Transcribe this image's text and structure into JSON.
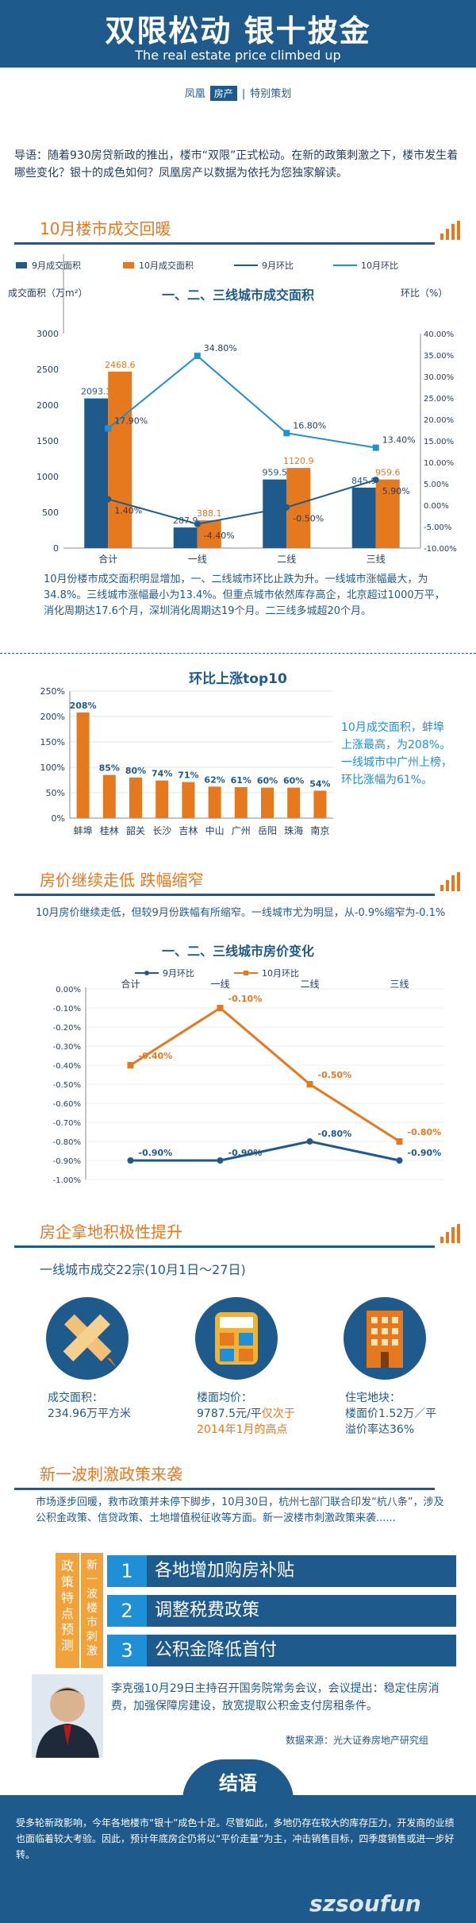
{
  "header": {
    "title": "双限松动 银十披金",
    "subtitle": "The real estate price climbed up",
    "brand": "凤凰",
    "brand_tag": "房产",
    "brand_special": "特别策划"
  },
  "intro": "导语：随着930房贷新政的推出，楼市“双限”正式松动。在新的政策刺激之下，楼市发生着哪些变化？银十的成色如何？凤凰房产以数据为依托为您独家解读。",
  "section1": {
    "title": "10月楼市成交回暖",
    "legend": [
      "9月成交面积",
      "10月成交面积",
      "9月环比",
      "10月环比"
    ],
    "chart_title": "一、二、三线城市成交面积",
    "left_axis_label": "成交面积（万m²）",
    "right_axis_label": "环比（%）",
    "paragraph_a": "10月份楼市成交面积明显增加，一、二线城市环比止跌为升。一线城市涨幅最大，为34.8%。三线城市涨幅最小为13.4%。",
    "paragraph_b": "但重点城市依然库存高企，北京超过1000万平，消化周期达17.6个月，深圳消化周期达19个月。二三线多城超20个月。"
  },
  "top10": {
    "title": "环比上涨top10",
    "note": "10月成交面积，蚌埠上涨最高，为208%。一线城市中广州上榜，环比涨幅为61%。"
  },
  "section2": {
    "title": "房价继续走低 跌幅缩窄",
    "paragraph": "10月房价继续走低，但较9月份跌幅有所缩窄。一线城市尤为明显，从-0.9%缩窄为-0.1%",
    "chart_title": "一、二、三线城市房价变化",
    "legend": [
      "9月环比",
      "10月环比"
    ]
  },
  "section3": {
    "title": "房企拿地积极性提升",
    "subtitle": "一线城市成交22宗(10月1日～27日)",
    "stat1_label": "成交面积：",
    "stat1_value": "234.96万平方米",
    "stat2_label": "楼面均价：",
    "stat2_value": "9787.5元/平",
    "stat2_highlight": "仅次于2014年1月的高点",
    "stat3_label": "住宅地块：",
    "stat3_value": "楼面价1.52万／平",
    "stat3_extra": "溢价率达36%"
  },
  "section4": {
    "title": "新一波刺激政策来袭",
    "paragraph": "市场逐步回暖，救市政策并未停下脚步，10月30日，杭州七部门联合印发“杭八条”，涉及公积金政策、信贷政策、土地增值税征收等方面。新一波楼市刺激政策来袭......",
    "left_label_a": "政策特点预测",
    "left_label_b": "新一波楼市刺激",
    "items": [
      {
        "num": "1",
        "label": "各地增加购房补贴"
      },
      {
        "num": "2",
        "label": "调整税费政策"
      },
      {
        "num": "3",
        "label": "公积金降低首付"
      }
    ],
    "quote": "李克强10月29日主持召开国务院常务会议，会议提出：稳定住房消费，加强保障房建设，放宽提取公积金支付房租条件。",
    "source": "数据来源：光大证券房地产研究组"
  },
  "conclusion": {
    "title": "结语",
    "text": "受多轮新政影响，今年各地楼市“银十”成色十足。尽管如此，多地仍存在较大的库存压力，开发商的业绩也面临着较大考验。因此，预计年底房企仍将以“平价走量”为主，冲击销售目标，四季度销售或进一步好转。",
    "watermark": "szsoufun"
  },
  "colors": {
    "primary": "#1f5a8c",
    "accent": "#e6781e",
    "line_light": "#1f8fd6"
  },
  "chart_data": [
    {
      "type": "bar",
      "title": "一、二、三线城市成交面积",
      "categories": [
        "合计",
        "一线",
        "二线",
        "三线"
      ],
      "series": [
        {
          "name": "9月成交面积",
          "values": [
            2093.3,
            287.9,
            959.5,
            845.9
          ]
        },
        {
          "name": "10月成交面积",
          "values": [
            2468.6,
            388.1,
            1120.9,
            959.6
          ]
        },
        {
          "name": "9月环比",
          "values": [
            1.4,
            -4.4,
            -0.5,
            5.9
          ],
          "axis": "right"
        },
        {
          "name": "10月环比",
          "values": [
            17.9,
            34.8,
            16.8,
            13.4
          ],
          "axis": "right"
        }
      ],
      "ylabel": "成交面积（万m²）",
      "y2label": "环比（%）",
      "ylim": [
        0,
        3000
      ],
      "y2lim": [
        -10,
        40
      ],
      "left_ticks": [
        "0",
        "500",
        "1000",
        "1500",
        "2000",
        "2500",
        "3000"
      ],
      "right_ticks": [
        "-10.00%",
        "-5.00%",
        "0.00%",
        "5.00%",
        "10.00%",
        "15.00%",
        "20.00%",
        "25.00%",
        "30.00%",
        "35.00%",
        "40.00%"
      ]
    },
    {
      "type": "bar",
      "title": "环比上涨top10",
      "categories": [
        "蚌埠",
        "桂林",
        "韶关",
        "长沙",
        "吉林",
        "中山",
        "广州",
        "岳阳",
        "珠海",
        "南京"
      ],
      "values": [
        208,
        85,
        80,
        74,
        71,
        62,
        61,
        60,
        60,
        54
      ],
      "labels": [
        "208%",
        "85%",
        "80%",
        "74%",
        "71%",
        "62%",
        "61%",
        "60%",
        "60%",
        "54%"
      ],
      "ylim": [
        0,
        250
      ],
      "ticks": [
        "0%",
        "50%",
        "100%",
        "150%",
        "200%",
        "250%"
      ]
    },
    {
      "type": "line",
      "title": "一、二、三线城市房价变化",
      "categories": [
        "合计",
        "一线",
        "二线",
        "三线"
      ],
      "series": [
        {
          "name": "9月环比",
          "values": [
            -0.9,
            -0.9,
            -0.8,
            -0.9
          ]
        },
        {
          "name": "10月环比",
          "values": [
            -0.4,
            -0.1,
            -0.5,
            -0.8
          ]
        }
      ],
      "ylim": [
        -1.0,
        0
      ],
      "ticks": [
        "0.00%",
        "-0.10%",
        "-0.20%",
        "-0.30%",
        "-0.40%",
        "-0.50%",
        "-0.60%",
        "-0.70%",
        "-0.80%",
        "-0.90%",
        "-1.00%"
      ]
    }
  ]
}
